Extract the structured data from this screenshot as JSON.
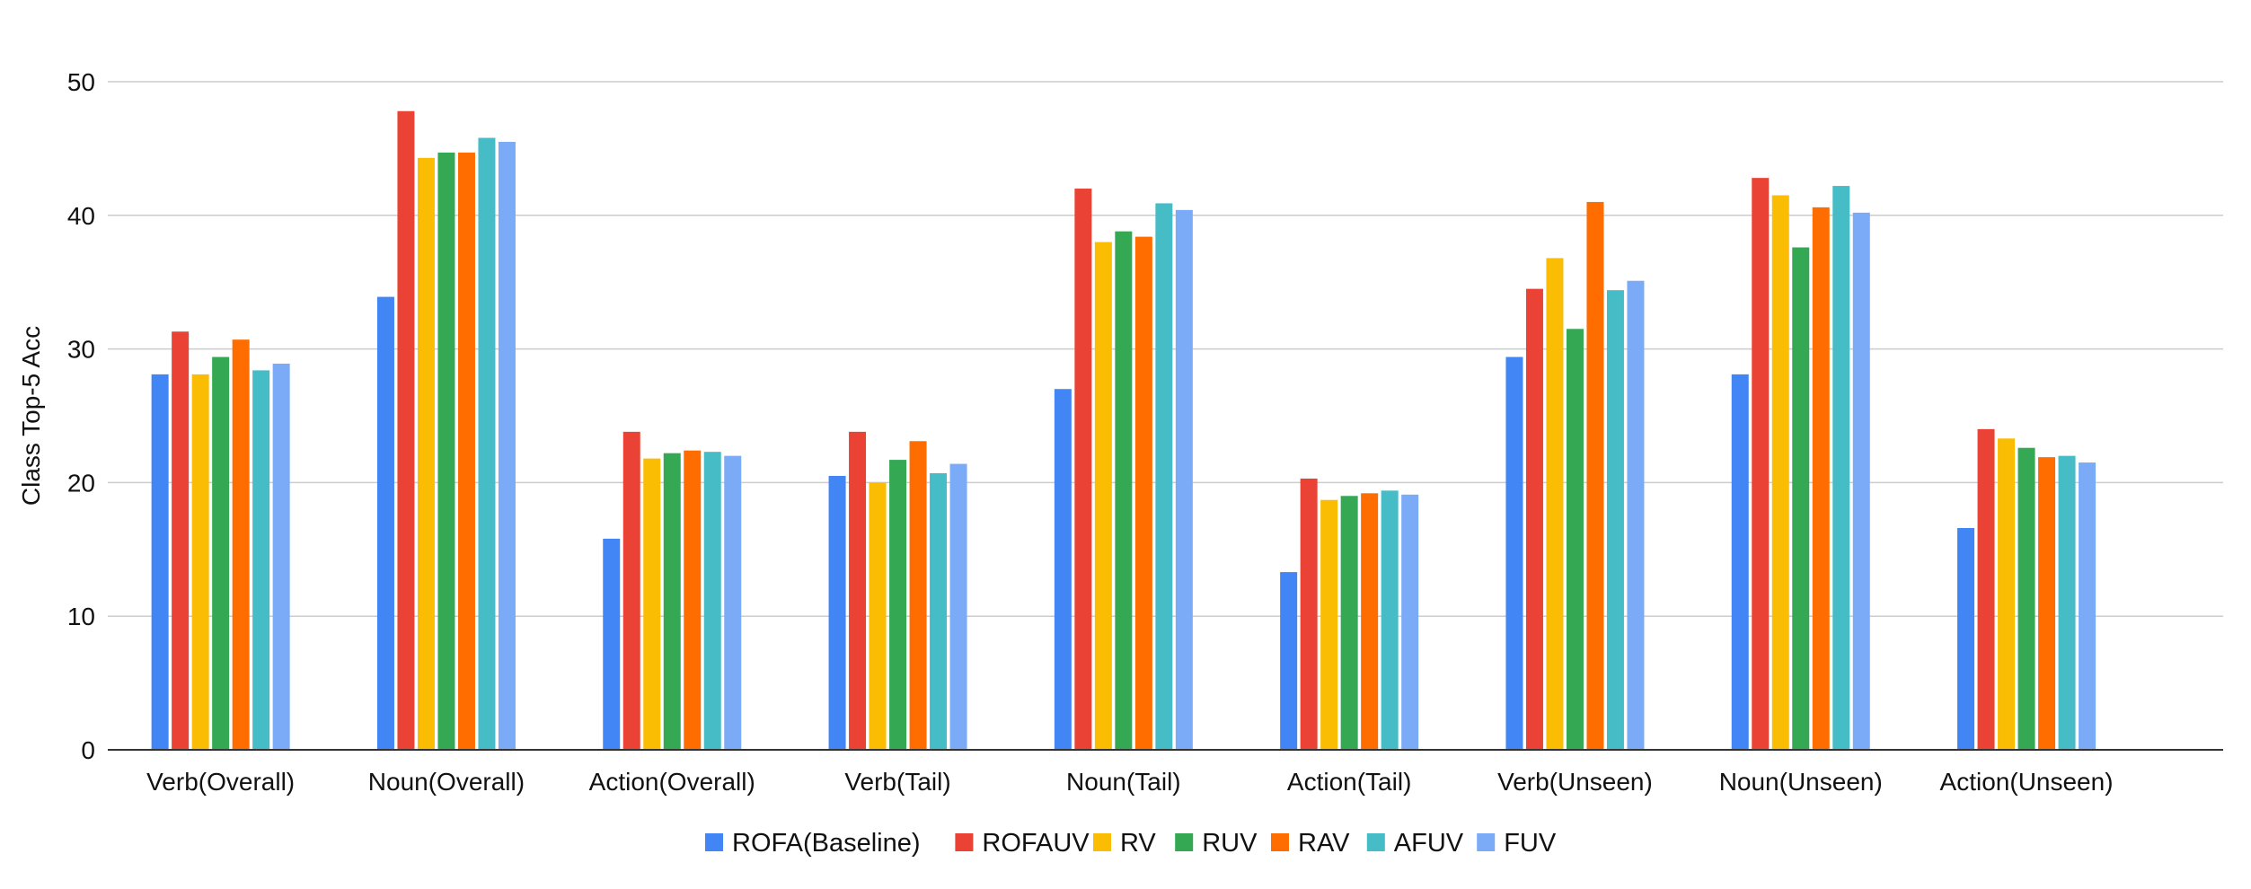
{
  "chart_data": {
    "type": "bar",
    "title": "",
    "xlabel": "",
    "ylabel": "Class Top-5 Acc",
    "ylim": [
      0,
      50
    ],
    "yticks": [
      0,
      10,
      20,
      30,
      40,
      50
    ],
    "grid": true,
    "legend_position": "bottom",
    "categories": [
      "Verb(Overall)",
      "Noun(Overall)",
      "Action(Overall)",
      "Verb(Tail)",
      "Noun(Tail)",
      "Action(Tail)",
      "Verb(Unseen)",
      "Noun(Unseen)",
      "Action(Unseen)"
    ],
    "series": [
      {
        "name": "ROFA(Baseline)",
        "color": "#4285F4",
        "values": [
          28.1,
          33.9,
          15.8,
          20.5,
          27.0,
          13.3,
          29.4,
          28.1,
          16.6
        ]
      },
      {
        "name": "ROFAUV",
        "color": "#EA4335",
        "values": [
          31.3,
          47.8,
          23.8,
          23.8,
          42.0,
          20.3,
          34.5,
          42.8,
          24.0
        ]
      },
      {
        "name": "RV",
        "color": "#FBBC04",
        "values": [
          28.1,
          44.3,
          21.8,
          20.0,
          38.0,
          18.7,
          36.8,
          41.5,
          23.3
        ]
      },
      {
        "name": "RUV",
        "color": "#34A853",
        "values": [
          29.4,
          44.7,
          22.2,
          21.7,
          38.8,
          19.0,
          31.5,
          37.6,
          22.6
        ]
      },
      {
        "name": "RAV",
        "color": "#FF6D01",
        "values": [
          30.7,
          44.7,
          22.4,
          23.1,
          38.4,
          19.2,
          41.0,
          40.6,
          21.9
        ]
      },
      {
        "name": "AFUV",
        "color": "#46BDC6",
        "values": [
          28.4,
          45.8,
          22.3,
          20.7,
          40.9,
          19.4,
          34.4,
          42.2,
          22.0
        ]
      },
      {
        "name": "FUV",
        "color": "#7BAAF7",
        "values": [
          28.9,
          45.5,
          22.0,
          21.4,
          40.4,
          19.1,
          35.1,
          40.2,
          21.5
        ]
      }
    ]
  }
}
